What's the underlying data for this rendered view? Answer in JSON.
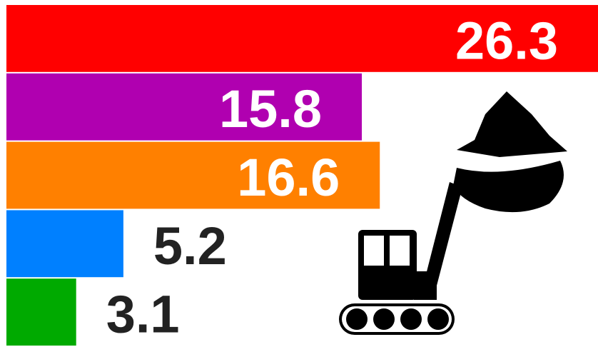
{
  "chart_data": {
    "type": "barh",
    "categories": [
      null,
      null,
      null,
      null,
      null
    ],
    "values": [
      26.3,
      15.8,
      16.6,
      5.2,
      3.1
    ],
    "colors": [
      "#ff0000",
      "#b000b0",
      "#ff8000",
      "#0080ff",
      "#00aa00"
    ],
    "xlim": [
      0,
      26.3
    ]
  }
}
